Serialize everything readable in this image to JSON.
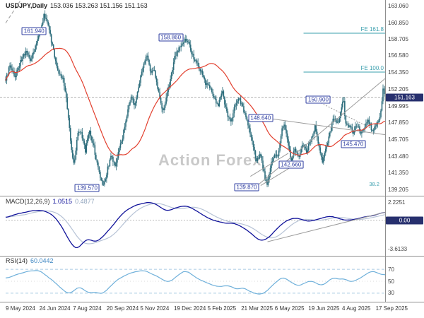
{
  "header": {
    "symbol": "USDJPY,Daily",
    "ohlc": "153.036 153.263 151.156 151.163"
  },
  "watermark": "Action Forex",
  "colors": {
    "candle": "#2d6d7c",
    "ma": "#e2402f",
    "macd": "#10129a",
    "macd_signal": "#b7c3d6",
    "rsi": "#6fb0da",
    "annotation": "#2e3da0",
    "tag_bg": "#27306e",
    "axis_text": "#444444",
    "trendline": "#9b9b9b",
    "fib": "#3a9fae",
    "watermark": "#c9c9c9",
    "border": "#8f8f8f"
  },
  "chart_data": {
    "type": "candlestick",
    "symbol": "USDJPY",
    "timeframe": "Daily",
    "last_ohlc": {
      "open": 153.036,
      "high": 153.263,
      "low": 151.156,
      "close": 151.163
    },
    "x_labels": [
      "9 May 2024",
      "24 Jun 2024",
      "7 Aug 2024",
      "20 Sep 2024",
      "5 Nov 2024",
      "19 Dec 2024",
      "5 Feb 2025",
      "21 Mar 2025",
      "6 May 2025",
      "19 Jun 2025",
      "4 Aug 2025",
      "17 Sep 2025"
    ],
    "main": {
      "y_ticks": [
        "163.060",
        "160.850",
        "158.705",
        "156.580",
        "154.350",
        "152.205",
        "149.995",
        "147.850",
        "145.705",
        "143.480",
        "141.350",
        "139.205"
      ],
      "current_price": "151.163",
      "ma_window": 42,
      "annotations": [
        {
          "text": "161.940",
          "f": 0.075,
          "p": 159.8
        },
        {
          "text": "158.860",
          "f": 0.435,
          "p": 158.9
        },
        {
          "text": "139.570",
          "f": 0.215,
          "p": 139.35
        },
        {
          "text": "139.870",
          "f": 0.635,
          "p": 139.5
        },
        {
          "text": "148.640",
          "f": 0.672,
          "p": 148.5
        },
        {
          "text": "150.900",
          "f": 0.824,
          "p": 150.85
        },
        {
          "text": "145.470",
          "f": 0.916,
          "p": 145.1
        },
        {
          "text": "142.660",
          "f": 0.752,
          "p": 142.4
        }
      ],
      "fib_levels": [
        {
          "text": "FE 161.8",
          "p": 159.48,
          "f0": 0.785
        },
        {
          "text": "FE 100.0",
          "p": 154.44,
          "f0": 0.785
        }
      ],
      "retrace_label": {
        "text": "38.2",
        "f": 0.985,
        "p": 139.9
      },
      "trendlines": [
        {
          "f0": 0.0,
          "p0": 160.8,
          "f1": 0.04,
          "p1": 163.8,
          "style": "dash"
        },
        {
          "f0": 0.668,
          "p0": 139.9,
          "f1": 1.0,
          "p1": 153.6,
          "style": "solid"
        },
        {
          "f0": 0.645,
          "p0": 140.9,
          "f1": 0.745,
          "p1": 143.9,
          "style": "solid"
        },
        {
          "f0": 0.672,
          "p0": 139.7,
          "f1": 0.772,
          "p1": 142.7,
          "style": "solid"
        },
        {
          "f0": 0.675,
          "p0": 148.55,
          "f1": 1.0,
          "p1": 146.3,
          "style": "solid"
        },
        {
          "f0": 0.824,
          "p0": 150.6,
          "f1": 0.96,
          "p1": 147.2,
          "style": "dot"
        }
      ],
      "price_anchors": [
        [
          0,
          153.6
        ],
        [
          0.012,
          155.3
        ],
        [
          0.025,
          153.8
        ],
        [
          0.04,
          155.9
        ],
        [
          0.055,
          157.1
        ],
        [
          0.065,
          156.0
        ],
        [
          0.078,
          157.6
        ],
        [
          0.09,
          159.6
        ],
        [
          0.102,
          161.9
        ],
        [
          0.112,
          160.8
        ],
        [
          0.122,
          158.0
        ],
        [
          0.132,
          155.8
        ],
        [
          0.142,
          154.0
        ],
        [
          0.152,
          153.6
        ],
        [
          0.162,
          150.0
        ],
        [
          0.172,
          145.0
        ],
        [
          0.18,
          142.2
        ],
        [
          0.19,
          146.8
        ],
        [
          0.2,
          146.3
        ],
        [
          0.21,
          144.2
        ],
        [
          0.22,
          146.9
        ],
        [
          0.23,
          145.4
        ],
        [
          0.24,
          142.6
        ],
        [
          0.25,
          140.8
        ],
        [
          0.258,
          139.6
        ],
        [
          0.268,
          141.8
        ],
        [
          0.278,
          143.4
        ],
        [
          0.288,
          142.2
        ],
        [
          0.298,
          144.3
        ],
        [
          0.31,
          146.4
        ],
        [
          0.32,
          148.9
        ],
        [
          0.33,
          151.4
        ],
        [
          0.34,
          149.8
        ],
        [
          0.35,
          152.6
        ],
        [
          0.36,
          154.6
        ],
        [
          0.372,
          156.6
        ],
        [
          0.382,
          154.2
        ],
        [
          0.392,
          154.8
        ],
        [
          0.402,
          152.0
        ],
        [
          0.413,
          149.2
        ],
        [
          0.424,
          151.2
        ],
        [
          0.435,
          153.6
        ],
        [
          0.446,
          156.4
        ],
        [
          0.457,
          157.4
        ],
        [
          0.468,
          158.2
        ],
        [
          0.476,
          158.8
        ],
        [
          0.486,
          157.6
        ],
        [
          0.496,
          156.2
        ],
        [
          0.506,
          155.4
        ],
        [
          0.516,
          154.4
        ],
        [
          0.527,
          153.0
        ],
        [
          0.538,
          152.4
        ],
        [
          0.549,
          151.0
        ],
        [
          0.56,
          150.2
        ],
        [
          0.571,
          151.8
        ],
        [
          0.582,
          149.4
        ],
        [
          0.593,
          147.8
        ],
        [
          0.604,
          150.2
        ],
        [
          0.615,
          151.0
        ],
        [
          0.628,
          149.4
        ],
        [
          0.64,
          147.6
        ],
        [
          0.652,
          144.8
        ],
        [
          0.662,
          142.8
        ],
        [
          0.672,
          143.8
        ],
        [
          0.682,
          141.0
        ],
        [
          0.69,
          139.9
        ],
        [
          0.7,
          142.6
        ],
        [
          0.71,
          144.2
        ],
        [
          0.717,
          143.4
        ],
        [
          0.726,
          146.4
        ],
        [
          0.733,
          147.9
        ],
        [
          0.742,
          145.8
        ],
        [
          0.752,
          142.9
        ],
        [
          0.762,
          144.6
        ],
        [
          0.772,
          143.2
        ],
        [
          0.782,
          145.2
        ],
        [
          0.792,
          144.2
        ],
        [
          0.806,
          145.6
        ],
        [
          0.815,
          147.6
        ],
        [
          0.825,
          144.8
        ],
        [
          0.835,
          142.9
        ],
        [
          0.845,
          144.8
        ],
        [
          0.855,
          146.6
        ],
        [
          0.865,
          148.6
        ],
        [
          0.875,
          147.6
        ],
        [
          0.885,
          149.8
        ],
        [
          0.89,
          150.8
        ],
        [
          0.896,
          147.6
        ],
        [
          0.906,
          147.4
        ],
        [
          0.916,
          146.6
        ],
        [
          0.926,
          147.6
        ],
        [
          0.936,
          146.6
        ],
        [
          0.946,
          147.2
        ],
        [
          0.956,
          148.2
        ],
        [
          0.966,
          146.8
        ],
        [
          0.976,
          147.4
        ],
        [
          0.985,
          148.2
        ],
        [
          0.991,
          150.6
        ],
        [
          0.996,
          152.8
        ],
        [
          1.0,
          151.16
        ]
      ]
    },
    "macd": {
      "label": "MACD(12,26,9)",
      "value": "1.0515",
      "signal": "0.4877",
      "ticks": [
        {
          "text": "2.2251",
          "v": 2.2251
        },
        {
          "text": "-3.6133",
          "v": -3.6133
        }
      ],
      "zero": {
        "text": "0.00",
        "v": 0
      },
      "trendline": {
        "f0": 0.69,
        "v0": -2.7,
        "f1": 1.0,
        "v1": 1.0
      },
      "anchors": [
        [
          0,
          0.3
        ],
        [
          0.03,
          0.8
        ],
        [
          0.06,
          1.1
        ],
        [
          0.09,
          1.25
        ],
        [
          0.11,
          1.0
        ],
        [
          0.13,
          0.4
        ],
        [
          0.15,
          -0.9
        ],
        [
          0.165,
          -2.4
        ],
        [
          0.18,
          -3.4
        ],
        [
          0.19,
          -3.61
        ],
        [
          0.205,
          -2.7
        ],
        [
          0.22,
          -2.3
        ],
        [
          0.235,
          -2.75
        ],
        [
          0.25,
          -2.4
        ],
        [
          0.265,
          -1.6
        ],
        [
          0.285,
          -0.5
        ],
        [
          0.3,
          0.4
        ],
        [
          0.32,
          1.3
        ],
        [
          0.345,
          1.9
        ],
        [
          0.365,
          2.15
        ],
        [
          0.385,
          2.22
        ],
        [
          0.4,
          1.9
        ],
        [
          0.415,
          1.35
        ],
        [
          0.43,
          1.2
        ],
        [
          0.445,
          1.45
        ],
        [
          0.46,
          1.7
        ],
        [
          0.475,
          1.8
        ],
        [
          0.49,
          1.55
        ],
        [
          0.505,
          1.1
        ],
        [
          0.52,
          0.6
        ],
        [
          0.535,
          0.25
        ],
        [
          0.55,
          0.0
        ],
        [
          0.565,
          -0.2
        ],
        [
          0.58,
          -0.4
        ],
        [
          0.595,
          -0.3
        ],
        [
          0.61,
          -0.55
        ],
        [
          0.625,
          -0.9
        ],
        [
          0.64,
          -1.4
        ],
        [
          0.655,
          -2.0
        ],
        [
          0.665,
          -2.45
        ],
        [
          0.675,
          -2.6
        ],
        [
          0.69,
          -2.3
        ],
        [
          0.705,
          -1.6
        ],
        [
          0.72,
          -0.8
        ],
        [
          0.735,
          -0.2
        ],
        [
          0.75,
          0.15
        ],
        [
          0.765,
          0.3
        ],
        [
          0.78,
          0.1
        ],
        [
          0.795,
          -0.15
        ],
        [
          0.81,
          -0.1
        ],
        [
          0.825,
          0.15
        ],
        [
          0.84,
          0.4
        ],
        [
          0.855,
          0.5
        ],
        [
          0.87,
          0.35
        ],
        [
          0.885,
          0.1
        ],
        [
          0.9,
          -0.05
        ],
        [
          0.915,
          0.05
        ],
        [
          0.93,
          0.25
        ],
        [
          0.945,
          0.4
        ],
        [
          0.96,
          0.5
        ],
        [
          0.975,
          0.65
        ],
        [
          0.99,
          0.9
        ],
        [
          1.0,
          1.05
        ]
      ]
    },
    "rsi": {
      "label": "RSI(14)",
      "value": "60.0442",
      "ticks": [
        {
          "text": "70",
          "v": 70
        },
        {
          "text": "50",
          "v": 50
        },
        {
          "text": "30",
          "v": 30
        }
      ],
      "anchors": [
        [
          0,
          55
        ],
        [
          0.03,
          62
        ],
        [
          0.06,
          66
        ],
        [
          0.09,
          68
        ],
        [
          0.11,
          58
        ],
        [
          0.13,
          48
        ],
        [
          0.15,
          36
        ],
        [
          0.165,
          28
        ],
        [
          0.18,
          34
        ],
        [
          0.195,
          42
        ],
        [
          0.21,
          33
        ],
        [
          0.225,
          30
        ],
        [
          0.24,
          32
        ],
        [
          0.255,
          28
        ],
        [
          0.27,
          38
        ],
        [
          0.285,
          47
        ],
        [
          0.3,
          55
        ],
        [
          0.32,
          62
        ],
        [
          0.34,
          66
        ],
        [
          0.36,
          69
        ],
        [
          0.38,
          64
        ],
        [
          0.4,
          58
        ],
        [
          0.415,
          52
        ],
        [
          0.43,
          48
        ],
        [
          0.445,
          55
        ],
        [
          0.46,
          64
        ],
        [
          0.475,
          68
        ],
        [
          0.49,
          62
        ],
        [
          0.505,
          55
        ],
        [
          0.52,
          50
        ],
        [
          0.535,
          46
        ],
        [
          0.55,
          42
        ],
        [
          0.565,
          40
        ],
        [
          0.58,
          44
        ],
        [
          0.595,
          40
        ],
        [
          0.61,
          36
        ],
        [
          0.625,
          40
        ],
        [
          0.64,
          34
        ],
        [
          0.655,
          30
        ],
        [
          0.67,
          27
        ],
        [
          0.685,
          32
        ],
        [
          0.7,
          42
        ],
        [
          0.715,
          50
        ],
        [
          0.73,
          57
        ],
        [
          0.745,
          52
        ],
        [
          0.76,
          45
        ],
        [
          0.775,
          42
        ],
        [
          0.79,
          48
        ],
        [
          0.805,
          52
        ],
        [
          0.82,
          47
        ],
        [
          0.835,
          42
        ],
        [
          0.85,
          50
        ],
        [
          0.865,
          57
        ],
        [
          0.88,
          52
        ],
        [
          0.895,
          55
        ],
        [
          0.91,
          48
        ],
        [
          0.925,
          52
        ],
        [
          0.94,
          58
        ],
        [
          0.955,
          64
        ],
        [
          0.97,
          68
        ],
        [
          0.985,
          62
        ],
        [
          1.0,
          60
        ]
      ]
    }
  }
}
